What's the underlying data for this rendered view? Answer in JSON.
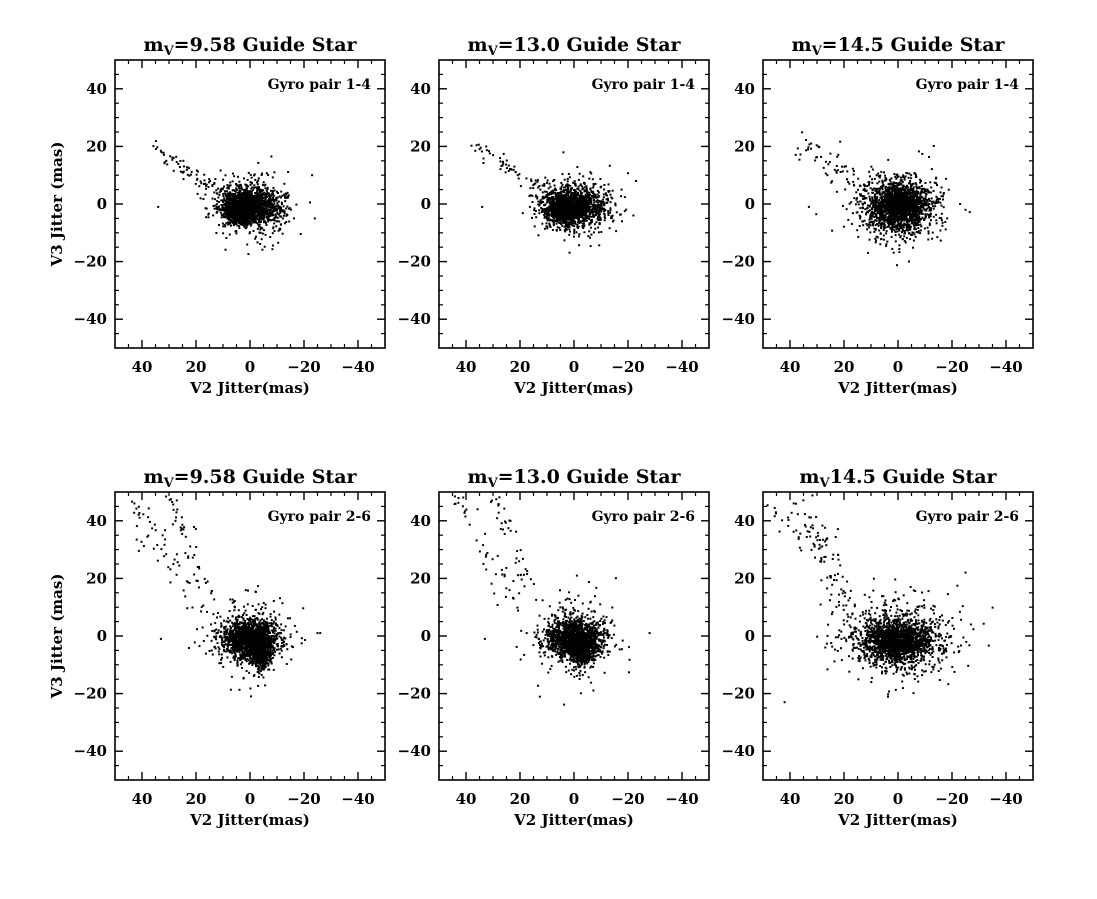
{
  "figure": {
    "colors": {
      "background": "#ffffff",
      "ink": "#000000"
    }
  },
  "chart_data": [
    {
      "type": "scatter",
      "title": {
        "prefix": "m",
        "sub": "V",
        "suffix": "=9.58 Guide Star"
      },
      "annotation": "Gyro pair 1-4",
      "xlabel": "V2 Jitter(mas)",
      "ylabel": "V3 Jitter (mas)",
      "xlim": [
        50,
        -50
      ],
      "ylim": [
        -50,
        50
      ],
      "xticks": [
        40,
        20,
        0,
        -20,
        -40
      ],
      "yticks": [
        40,
        20,
        0,
        -20,
        -40
      ],
      "x_tick_labels": [
        "40",
        "20",
        "0",
        "−20",
        "−40"
      ],
      "y_tick_labels": [
        "40",
        "20",
        "0",
        "−20",
        "−40"
      ],
      "clusters": [
        {
          "cx": 0,
          "cy": -1,
          "sx": 5.5,
          "sy": 3.2,
          "n": 1200
        },
        {
          "cx": 4,
          "cy": -2,
          "sx": 2.5,
          "sy": 2.0,
          "n": 600
        },
        {
          "cx": 0,
          "cy": 0,
          "sx": 7.0,
          "sy": 6.0,
          "n": 350
        }
      ],
      "tails": [
        {
          "from": [
            36,
            20
          ],
          "to": [
            10,
            4
          ],
          "spread": 1.5,
          "n": 70
        }
      ],
      "points": [
        [
          34,
          -1
        ],
        [
          -23,
          10
        ],
        [
          -24,
          -5
        ]
      ]
    },
    {
      "type": "scatter",
      "title": {
        "prefix": "m",
        "sub": "V",
        "suffix": "=13.0 Guide Star"
      },
      "annotation": "Gyro pair 1-4",
      "xlabel": "V2 Jitter(mas)",
      "ylabel": "",
      "xlim": [
        50,
        -50
      ],
      "ylim": [
        -50,
        50
      ],
      "xticks": [
        40,
        20,
        0,
        -20,
        -40
      ],
      "yticks": [
        40,
        20,
        0,
        -20,
        -40
      ],
      "x_tick_labels": [
        "40",
        "20",
        "0",
        "−20",
        "−40"
      ],
      "y_tick_labels": [
        "40",
        "20",
        "0",
        "−20",
        "−40"
      ],
      "clusters": [
        {
          "cx": 0,
          "cy": -1,
          "sx": 5.5,
          "sy": 3.2,
          "n": 1200
        },
        {
          "cx": 4,
          "cy": -2,
          "sx": 2.5,
          "sy": 2.0,
          "n": 500
        },
        {
          "cx": 0,
          "cy": 0,
          "sx": 7.0,
          "sy": 5.5,
          "n": 300
        }
      ],
      "tails": [
        {
          "from": [
            36,
            20
          ],
          "to": [
            12,
            5
          ],
          "spread": 1.5,
          "n": 55
        }
      ],
      "points": [
        [
          34,
          -1
        ],
        [
          -23,
          8
        ],
        [
          -22,
          -4
        ]
      ]
    },
    {
      "type": "scatter",
      "title": {
        "prefix": "m",
        "sub": "V",
        "suffix": "=14.5 Guide Star"
      },
      "annotation": "Gyro pair 1-4",
      "xlabel": "V2 Jitter(mas)",
      "ylabel": "",
      "xlim": [
        50,
        -50
      ],
      "ylim": [
        -50,
        50
      ],
      "xticks": [
        40,
        20,
        0,
        -20,
        -40
      ],
      "yticks": [
        40,
        20,
        0,
        -20,
        -40
      ],
      "x_tick_labels": [
        "40",
        "20",
        "0",
        "−20",
        "−40"
      ],
      "y_tick_labels": [
        "40",
        "20",
        "0",
        "−20",
        "−40"
      ],
      "clusters": [
        {
          "cx": 0,
          "cy": -1,
          "sx": 5.5,
          "sy": 4.2,
          "n": 1500
        },
        {
          "cx": 0,
          "cy": 0,
          "sx": 8.0,
          "sy": 6.5,
          "n": 500
        }
      ],
      "tails": [
        {
          "from": [
            36,
            21
          ],
          "to": [
            12,
            5
          ],
          "spread": 2.5,
          "n": 60
        }
      ],
      "points": [
        [
          33,
          -1
        ],
        [
          -25,
          -2
        ],
        [
          -23,
          0
        ]
      ]
    },
    {
      "type": "scatter",
      "title": {
        "prefix": "m",
        "sub": "V",
        "suffix": "=9.58 Guide Star"
      },
      "annotation": "Gyro pair 2-6",
      "xlabel": "V2 Jitter(mas)",
      "ylabel": "V3 Jitter (mas)",
      "xlim": [
        50,
        -50
      ],
      "ylim": [
        -50,
        50
      ],
      "xticks": [
        40,
        20,
        0,
        -20,
        -40
      ],
      "yticks": [
        40,
        20,
        0,
        -20,
        -40
      ],
      "x_tick_labels": [
        "40",
        "20",
        "0",
        "−20",
        "−40"
      ],
      "y_tick_labels": [
        "40",
        "20",
        "0",
        "−20",
        "−40"
      ],
      "clusters": [
        {
          "cx": 0,
          "cy": -1,
          "sx": 5.0,
          "sy": 3.2,
          "n": 1300
        },
        {
          "cx": -4,
          "cy": -6,
          "sx": 2.2,
          "sy": 2.8,
          "n": 400
        },
        {
          "cx": 0,
          "cy": 0,
          "sx": 8.0,
          "sy": 7.0,
          "n": 300
        }
      ],
      "tails": [
        {
          "from": [
            45,
            50
          ],
          "to": [
            20,
            10
          ],
          "spread": 2.5,
          "n": 50
        },
        {
          "from": [
            30,
            50
          ],
          "to": [
            16,
            16
          ],
          "spread": 1.5,
          "n": 45
        }
      ],
      "points": [
        [
          33,
          -1
        ],
        [
          -26,
          1
        ],
        [
          -25,
          1
        ]
      ]
    },
    {
      "type": "scatter",
      "title": {
        "prefix": "m",
        "sub": "V",
        "suffix": "=13.0 Guide Star"
      },
      "annotation": "Gyro pair 2-6",
      "xlabel": "V2 Jitter(mas)",
      "ylabel": "",
      "xlim": [
        50,
        -50
      ],
      "ylim": [
        -50,
        50
      ],
      "xticks": [
        40,
        20,
        0,
        -20,
        -40
      ],
      "yticks": [
        40,
        20,
        0,
        -20,
        -40
      ],
      "x_tick_labels": [
        "40",
        "20",
        "0",
        "−20",
        "−40"
      ],
      "y_tick_labels": [
        "40",
        "20",
        "0",
        "−20",
        "−40"
      ],
      "clusters": [
        {
          "cx": 0,
          "cy": -1,
          "sx": 5.0,
          "sy": 3.2,
          "n": 1300
        },
        {
          "cx": -3,
          "cy": -5,
          "sx": 2.2,
          "sy": 2.5,
          "n": 350
        },
        {
          "cx": 0,
          "cy": 0,
          "sx": 8.0,
          "sy": 7.0,
          "n": 280
        }
      ],
      "tails": [
        {
          "from": [
            45,
            50
          ],
          "to": [
            20,
            10
          ],
          "spread": 2.5,
          "n": 45
        },
        {
          "from": [
            30,
            50
          ],
          "to": [
            16,
            16
          ],
          "spread": 1.5,
          "n": 40
        }
      ],
      "points": [
        [
          33,
          -1
        ],
        [
          -28,
          1
        ]
      ]
    },
    {
      "type": "scatter",
      "title": {
        "prefix": "m",
        "sub": "V",
        "suffix": "14.5 Guide Star"
      },
      "annotation": "Gyro pair 2-6",
      "xlabel": "V2 Jitter(mas)",
      "ylabel": "",
      "xlim": [
        50,
        -50
      ],
      "ylim": [
        -50,
        50
      ],
      "xticks": [
        40,
        20,
        0,
        -20,
        -40
      ],
      "yticks": [
        40,
        20,
        0,
        -20,
        -40
      ],
      "x_tick_labels": [
        "40",
        "20",
        "0",
        "−20",
        "−40"
      ],
      "y_tick_labels": [
        "40",
        "20",
        "0",
        "−20",
        "−40"
      ],
      "clusters": [
        {
          "cx": 0,
          "cy": -2,
          "sx": 6.5,
          "sy": 3.5,
          "n": 1500
        },
        {
          "cx": 0,
          "cy": 0,
          "sx": 11.0,
          "sy": 7.0,
          "n": 600
        }
      ],
      "tails": [
        {
          "from": [
            38,
            50
          ],
          "to": [
            18,
            10
          ],
          "spread": 3.0,
          "n": 70
        },
        {
          "from": [
            48,
            45
          ],
          "to": [
            25,
            25
          ],
          "spread": 3.0,
          "n": 30
        }
      ],
      "points": [
        [
          42,
          -23
        ],
        [
          -25,
          22
        ],
        [
          -27,
          4
        ]
      ]
    }
  ]
}
